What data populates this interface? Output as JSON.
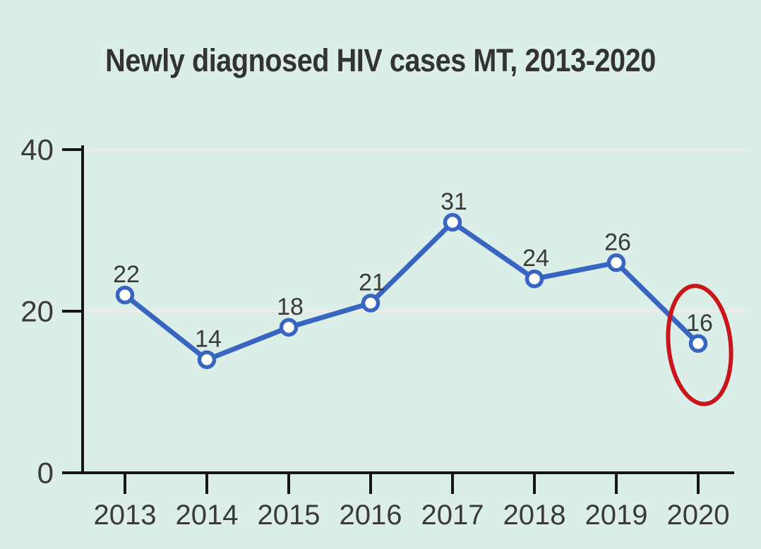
{
  "page": {
    "background": "#dceee8"
  },
  "chart_data": {
    "type": "line",
    "title": "Newly diagnosed HIV cases MT, 2013-2020",
    "xlabel": "",
    "ylabel": "",
    "categories": [
      "2013",
      "2014",
      "2015",
      "2016",
      "2017",
      "2018",
      "2019",
      "2020"
    ],
    "values": [
      22,
      14,
      18,
      21,
      31,
      24,
      26,
      16
    ],
    "point_labels": [
      "22",
      "14",
      "18",
      "21",
      "31",
      "24",
      "26",
      "16"
    ],
    "ylim": [
      0,
      40
    ],
    "yticks": [
      0,
      20,
      40
    ],
    "grid": true,
    "legend": false,
    "annotation": {
      "shape": "ellipse",
      "target_category": "2020",
      "target_value": 16,
      "meaning": "highlight of last data point"
    },
    "colors": {
      "background": "#dceee8",
      "line": "#3765c1",
      "marker_fill": "#ffffff",
      "marker_ring": "#3765c1",
      "annotation_red": "#c9161a",
      "axis": "#161616",
      "tick_text": "#3a3a3a",
      "title_text": "#333333",
      "gridline": "#f2ebeb"
    }
  }
}
